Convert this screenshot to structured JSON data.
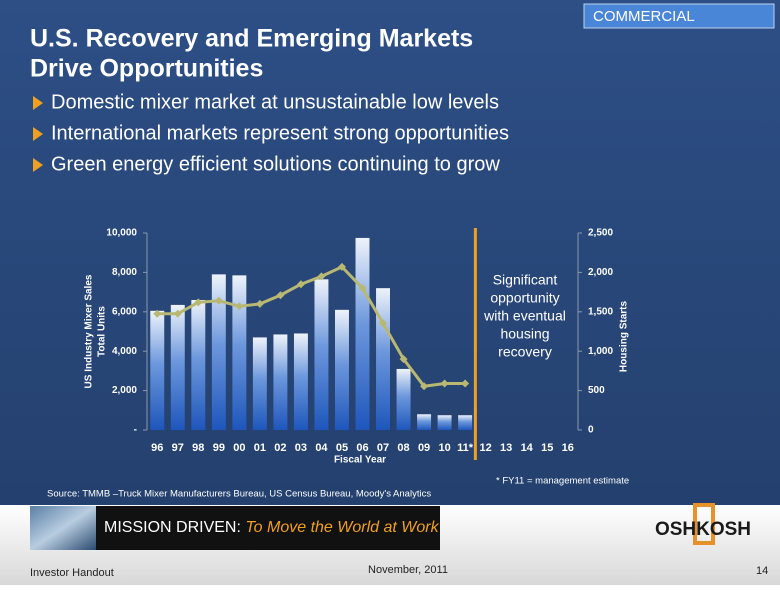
{
  "slide": {
    "badge": "COMMERCIAL",
    "title": [
      "U.S. Recovery and Emerging Markets",
      "Drive Opportunities"
    ],
    "bullets": [
      "Domestic mixer market at unsustainable low levels",
      "International markets represent strong opportunities",
      "Green energy efficient solutions continuing to grow"
    ],
    "source": "Source: TMMB –Truck Mixer Manufacturers Bureau,  US Census Bureau, Moody's Analytics",
    "footnote": "* FY11  = management estimate",
    "banner": {
      "lead": "MISSION DRIVEN:",
      "tagline": "To Move the World at Work"
    },
    "logo": "OSHKOSH",
    "footer": {
      "left": "Investor Handout",
      "center": "November, 2011",
      "page": "14"
    }
  },
  "chart_data": {
    "type": "bar_line",
    "categories": [
      "96",
      "97",
      "98",
      "99",
      "00",
      "01",
      "02",
      "03",
      "04",
      "05",
      "06",
      "07",
      "08",
      "09",
      "10",
      "11*",
      "12",
      "13",
      "14",
      "15",
      "16"
    ],
    "xlabel": "Fiscal Year",
    "ylabel": [
      "US Industry Mixer Sales",
      "Total Units"
    ],
    "y2label": "Housing Starts",
    "annotation": [
      "Significant",
      "opportunity",
      "with eventual",
      "housing",
      "recovery"
    ],
    "series": [
      {
        "type": "bar",
        "color": "#2a62c4",
        "values": [
          6050,
          6350,
          6600,
          7900,
          7850,
          4700,
          4850,
          4900,
          7650,
          6100,
          9750,
          7200,
          3100,
          800,
          750,
          750,
          null,
          null,
          null,
          null,
          null
        ]
      },
      {
        "type": "line",
        "axis": "y2",
        "color": "#b8b872",
        "values": [
          1475,
          1475,
          1620,
          1640,
          1570,
          1600,
          1710,
          1850,
          1950,
          2070,
          1800,
          1355,
          900,
          555,
          590,
          590,
          null,
          null,
          null,
          null,
          null
        ]
      }
    ],
    "ylim": [
      0,
      10000
    ],
    "yticks": [
      {
        "value": 0,
        "label": "-"
      },
      {
        "value": 2000,
        "label": "2,000"
      },
      {
        "value": 4000,
        "label": "4,000"
      },
      {
        "value": 6000,
        "label": "6,000"
      },
      {
        "value": 8000,
        "label": "8,000"
      },
      {
        "value": 10000,
        "label": "10,000"
      }
    ],
    "y2lim": [
      0,
      2500
    ],
    "y2ticks": [
      0,
      500,
      {
        "value": 1000,
        "label": "1,000"
      },
      {
        "value": 1500,
        "label": "1,500"
      },
      {
        "value": 2000,
        "label": "2,000"
      },
      {
        "value": 2500,
        "label": "2,500"
      }
    ]
  }
}
